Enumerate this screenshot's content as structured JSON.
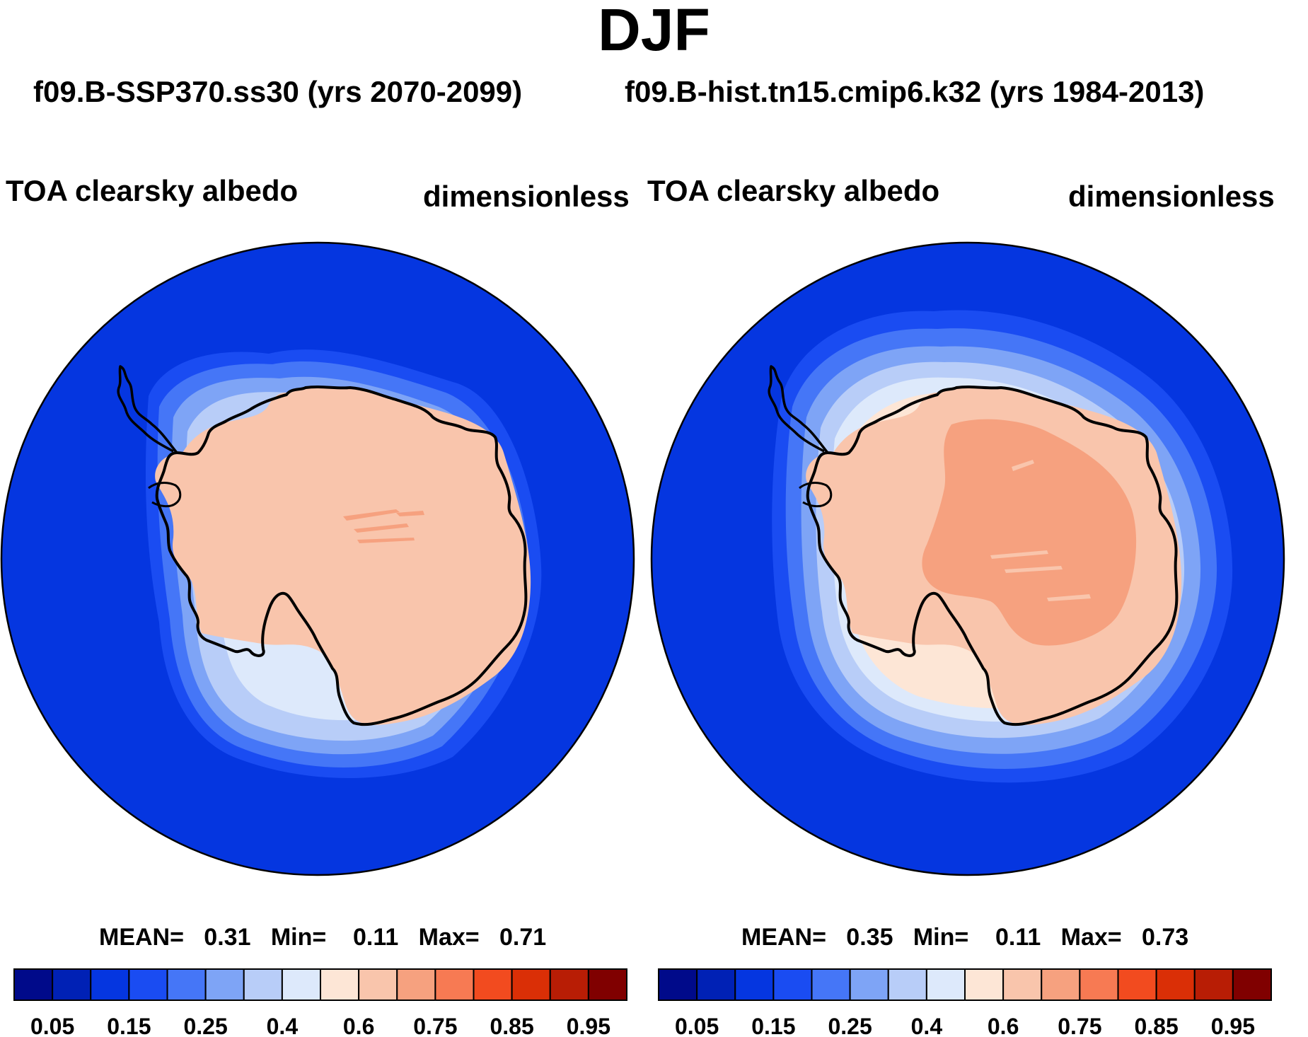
{
  "title": "DJF",
  "panels": [
    {
      "case": "f09.B-SSP370.ss30 (yrs 2070-2099)",
      "variable": "TOA clearsky albedo",
      "units": "dimensionless",
      "stats": "MEAN=   0.31   Min=    0.11   Max=   0.71"
    },
    {
      "case": "f09.B-hist.tn15.cmip6.k32 (yrs 1984-2013)",
      "variable": "TOA clearsky albedo",
      "units": "dimensionless",
      "stats": "MEAN=   0.35   Min=    0.11   Max=   0.73"
    }
  ],
  "chart_data": [
    {
      "type": "heatmap",
      "projection": "south polar stereographic",
      "title": "TOA clearsky albedo",
      "units": "dimensionless",
      "mean": 0.31,
      "min": 0.11,
      "max": 0.71,
      "contour_levels": [
        0.05,
        0.1,
        0.15,
        0.2,
        0.25,
        0.3,
        0.4,
        0.5,
        0.6,
        0.7,
        0.75,
        0.8,
        0.85,
        0.9,
        0.95
      ],
      "colorbar_tick_labels": [
        "0.05",
        "0.15",
        "0.25",
        "0.4",
        "0.6",
        "0.75",
        "0.85",
        "0.95"
      ],
      "colors": [
        "#000a8a",
        "#0021b5",
        "#0536e0",
        "#1a4cf2",
        "#4576f7",
        "#7ea4f6",
        "#b8cdf8",
        "#dde9fb",
        "#fde6d6",
        "#f9c5ac",
        "#f6a17f",
        "#f77a53",
        "#f24b1f",
        "#da2f06",
        "#b81d05",
        "#800000"
      ]
    },
    {
      "type": "heatmap",
      "projection": "south polar stereographic",
      "title": "TOA clearsky albedo",
      "units": "dimensionless",
      "mean": 0.35,
      "min": 0.11,
      "max": 0.73,
      "contour_levels": [
        0.05,
        0.1,
        0.15,
        0.2,
        0.25,
        0.3,
        0.4,
        0.5,
        0.6,
        0.7,
        0.75,
        0.8,
        0.85,
        0.9,
        0.95
      ],
      "colorbar_tick_labels": [
        "0.05",
        "0.15",
        "0.25",
        "0.4",
        "0.6",
        "0.75",
        "0.85",
        "0.95"
      ],
      "colors": [
        "#000a8a",
        "#0021b5",
        "#0536e0",
        "#1a4cf2",
        "#4576f7",
        "#7ea4f6",
        "#b8cdf8",
        "#dde9fb",
        "#fde6d6",
        "#f9c5ac",
        "#f6a17f",
        "#f77a53",
        "#f24b1f",
        "#da2f06",
        "#b81d05",
        "#800000"
      ]
    }
  ]
}
